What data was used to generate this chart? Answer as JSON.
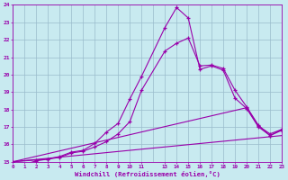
{
  "xlabel": "Windchill (Refroidissement éolien,°C)",
  "xlim": [
    0,
    23
  ],
  "ylim": [
    15,
    24
  ],
  "bg_color": "#c8eaf0",
  "line_color": "#9900aa",
  "grid_color": "#99bbcc",
  "line1_x": [
    0,
    1,
    2,
    3,
    4,
    5,
    6,
    7,
    8,
    9,
    10,
    11,
    13,
    14,
    15,
    16,
    17,
    18,
    19,
    20,
    21,
    22,
    23
  ],
  "line1_y": [
    15.0,
    14.85,
    15.05,
    15.15,
    15.3,
    15.55,
    15.65,
    16.05,
    16.7,
    17.2,
    18.6,
    19.9,
    22.7,
    23.85,
    23.25,
    20.3,
    20.5,
    20.25,
    18.65,
    18.05,
    17.0,
    16.5,
    16.8
  ],
  "line2_x": [
    0,
    2,
    3,
    4,
    5,
    6,
    7,
    8,
    9,
    10,
    11,
    13,
    14,
    15,
    16,
    17,
    18,
    19,
    20,
    21,
    22,
    23
  ],
  "line2_y": [
    15.0,
    15.1,
    15.15,
    15.25,
    15.5,
    15.6,
    15.85,
    16.15,
    16.6,
    17.3,
    19.1,
    21.35,
    21.8,
    22.1,
    20.5,
    20.55,
    20.35,
    19.1,
    18.15,
    17.1,
    16.5,
    16.85
  ],
  "line3_x": [
    0,
    20,
    21,
    22,
    23
  ],
  "line3_y": [
    15.0,
    18.1,
    17.05,
    16.6,
    16.85
  ],
  "line4_x": [
    0,
    23
  ],
  "line4_y": [
    15.0,
    16.5
  ],
  "ytick_labels": [
    "15",
    "16",
    "17",
    "18",
    "19",
    "20",
    "21",
    "22",
    "23",
    "24"
  ],
  "ytick_vals": [
    15,
    16,
    17,
    18,
    19,
    20,
    21,
    22,
    23,
    24
  ],
  "xtick_vals": [
    0,
    1,
    2,
    3,
    4,
    5,
    6,
    7,
    8,
    9,
    10,
    11,
    13,
    14,
    15,
    16,
    17,
    18,
    19,
    20,
    21,
    22,
    23
  ],
  "xtick_labels": [
    "0",
    "1",
    "2",
    "3",
    "4",
    "5",
    "6",
    "7",
    "8",
    "9",
    "10",
    "11",
    "13",
    "14",
    "15",
    "16",
    "17",
    "18",
    "19",
    "20",
    "21",
    "22",
    "23"
  ]
}
